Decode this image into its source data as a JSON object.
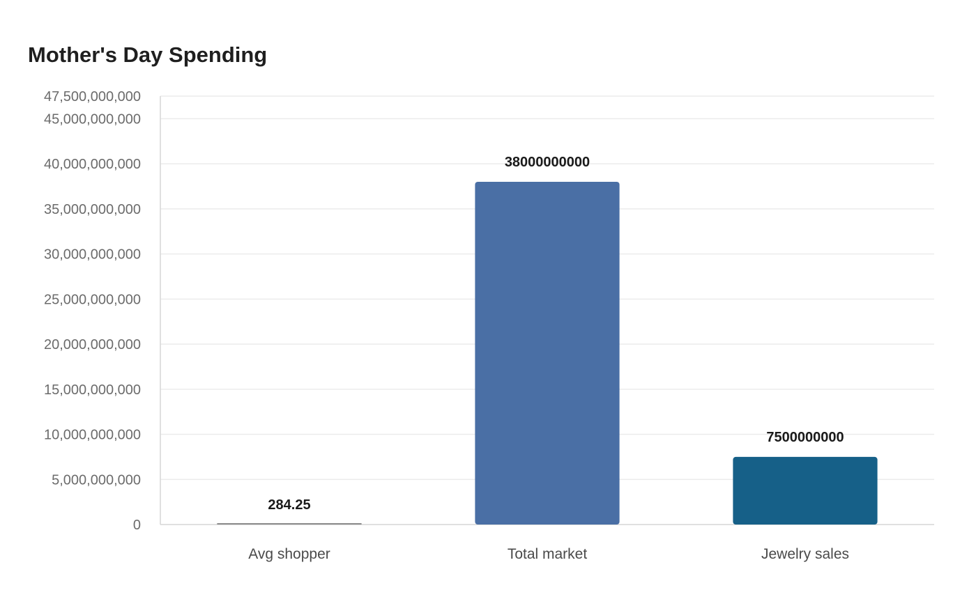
{
  "chart_data": {
    "type": "bar",
    "title": "Mother's Day Spending",
    "xlabel": "",
    "ylabel": "",
    "categories": [
      "Avg shopper",
      "Total market",
      "Jewelry sales"
    ],
    "values": [
      284.25,
      38000000000,
      7500000000
    ],
    "data_labels": [
      "284.25",
      "38000000000",
      "7500000000"
    ],
    "ylim": [
      0,
      47500000000
    ],
    "y_ticks": [
      0,
      5000000000,
      10000000000,
      15000000000,
      20000000000,
      25000000000,
      30000000000,
      35000000000,
      40000000000,
      45000000000,
      47500000000
    ],
    "y_tick_labels": [
      "0",
      "5,000,000,000",
      "10,000,000,000",
      "15,000,000,000",
      "20,000,000,000",
      "25,000,000,000",
      "30,000,000,000",
      "35,000,000,000",
      "40,000,000,000",
      "45,000,000,000",
      "47,500,000,000"
    ],
    "bar_colors": [
      "#8c8c8c",
      "#4a6fa5",
      "#166088"
    ],
    "grid": true,
    "legend": "none"
  }
}
